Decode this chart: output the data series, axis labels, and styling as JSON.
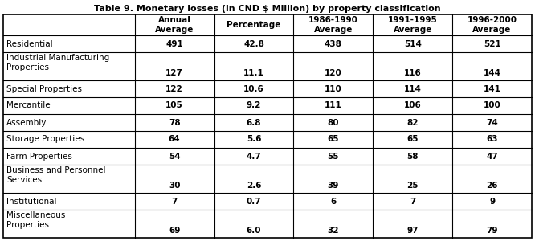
{
  "title": "Table 9. Monetary losses (in CND $ Million) by property classification",
  "columns": [
    "Annual\nAverage",
    "Percentage",
    "1986-1990\nAverage",
    "1991-1995\nAverage",
    "1996-2000\nAverage"
  ],
  "rows": [
    {
      "label": "Residential",
      "values": [
        "491",
        "42.8",
        "438",
        "514",
        "521"
      ],
      "two_line": false
    },
    {
      "label": "Industrial Manufacturing\nProperties",
      "values": [
        "127",
        "11.1",
        "120",
        "116",
        "144"
      ],
      "two_line": true
    },
    {
      "label": "Special Properties",
      "values": [
        "122",
        "10.6",
        "110",
        "114",
        "141"
      ],
      "two_line": false
    },
    {
      "label": "Mercantile",
      "values": [
        "105",
        "9.2",
        "111",
        "106",
        "100"
      ],
      "two_line": false
    },
    {
      "label": "Assembly",
      "values": [
        "78",
        "6.8",
        "80",
        "82",
        "74"
      ],
      "two_line": false
    },
    {
      "label": "Storage Properties",
      "values": [
        "64",
        "5.6",
        "65",
        "65",
        "63"
      ],
      "two_line": false
    },
    {
      "label": "Farm Properties",
      "values": [
        "54",
        "4.7",
        "55",
        "58",
        "47"
      ],
      "two_line": false
    },
    {
      "label": "Business and Personnel\nServices",
      "values": [
        "30",
        "2.6",
        "39",
        "25",
        "26"
      ],
      "two_line": true
    },
    {
      "label": "Institutional",
      "values": [
        "7",
        "0.7",
        "6",
        "7",
        "9"
      ],
      "two_line": false
    },
    {
      "label": "Miscellaneous\nProperties",
      "values": [
        "69",
        "6.0",
        "32",
        "97",
        "79"
      ],
      "two_line": true
    }
  ],
  "bg_color": "#ffffff",
  "line_color": "#000000",
  "font_size": 7.5,
  "header_font_size": 7.5,
  "title_fontsize": 8.0,
  "fig_width": 6.66,
  "fig_height": 3.05,
  "dpi": 100
}
